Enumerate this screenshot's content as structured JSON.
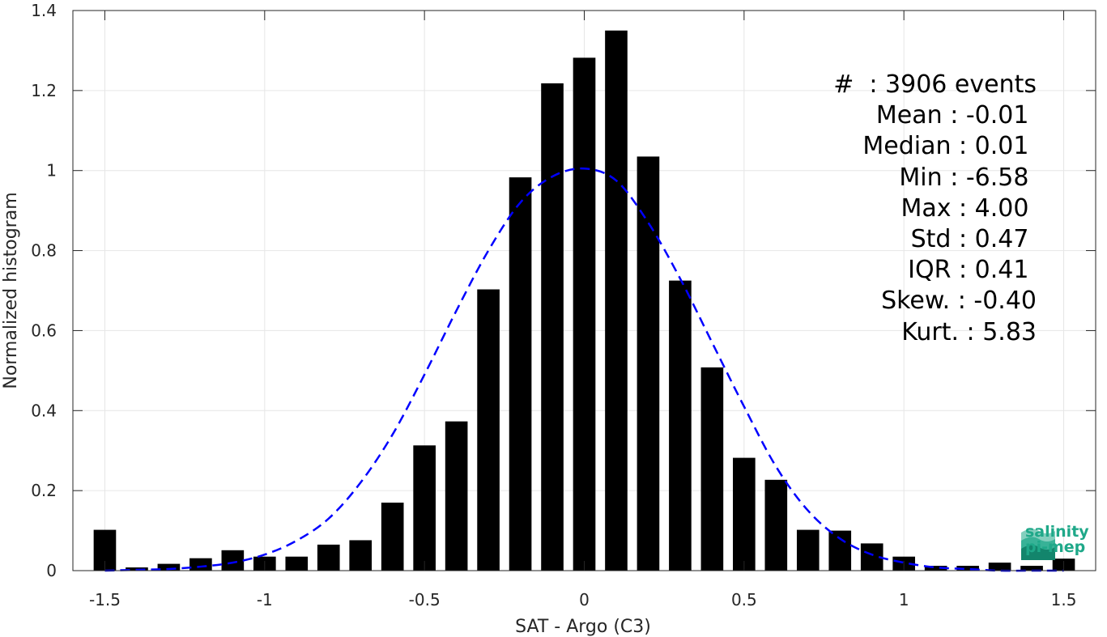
{
  "chart_data": {
    "type": "bar",
    "xlabel": "SAT - Argo (C3)",
    "ylabel": "Normalized histogram",
    "xlim": [
      -1.6,
      1.6
    ],
    "ylim": [
      0,
      1.4
    ],
    "xticks": [
      -1.5,
      -1,
      -0.5,
      0,
      0.5,
      1,
      1.5
    ],
    "xtick_labels": [
      "-1.5",
      "-1",
      "-0.5",
      "0",
      "0.5",
      "1",
      "1.5"
    ],
    "yticks": [
      0,
      0.2,
      0.4,
      0.6,
      0.8,
      1,
      1.2,
      1.4
    ],
    "ytick_labels": [
      "0",
      "0.2",
      "0.4",
      "0.6",
      "0.8",
      "1",
      "1.2",
      "1.4"
    ],
    "grid": true,
    "bar_color": "#000000",
    "fit_color": "#0000ff",
    "bin_width": 0.1,
    "x": [
      -1.5,
      -1.4,
      -1.3,
      -1.2,
      -1.1,
      -1.0,
      -0.9,
      -0.8,
      -0.7,
      -0.6,
      -0.5,
      -0.4,
      -0.3,
      -0.2,
      -0.1,
      0.0,
      0.1,
      0.2,
      0.3,
      0.4,
      0.5,
      0.6,
      0.7,
      0.8,
      0.9,
      1.0,
      1.1,
      1.2,
      1.3,
      1.4,
      1.5
    ],
    "values": [
      0.102,
      0.008,
      0.017,
      0.031,
      0.051,
      0.035,
      0.035,
      0.065,
      0.076,
      0.17,
      0.313,
      0.373,
      0.703,
      0.983,
      1.218,
      1.282,
      1.35,
      1.035,
      0.725,
      0.508,
      0.282,
      0.227,
      0.102,
      0.1,
      0.068,
      0.035,
      0.012,
      0.012,
      0.02,
      0.012,
      0.03
    ],
    "series": [
      {
        "name": "",
        "type": "line",
        "style": "dashed",
        "x": [
          -1.5,
          -1.4,
          -1.3,
          -1.2,
          -1.1,
          -1.0,
          -0.9,
          -0.8,
          -0.7,
          -0.6,
          -0.5,
          -0.4,
          -0.3,
          -0.2,
          -0.1,
          0.0,
          0.1,
          0.2,
          0.3,
          0.4,
          0.5,
          0.6,
          0.7,
          0.8,
          0.9,
          1.0,
          1.1,
          1.2,
          1.3,
          1.4,
          1.5
        ],
        "y": [
          0.0,
          0.002,
          0.004,
          0.01,
          0.02,
          0.04,
          0.075,
          0.13,
          0.22,
          0.34,
          0.49,
          0.65,
          0.8,
          0.92,
          0.985,
          1.005,
          0.975,
          0.87,
          0.73,
          0.57,
          0.41,
          0.26,
          0.15,
          0.08,
          0.04,
          0.02,
          0.008,
          0.004,
          0.0,
          0.0,
          0.0
        ]
      }
    ]
  },
  "stats": [
    "#  : 3906 events",
    "Mean : -0.01 ",
    "Median : 0.01 ",
    "Min : -6.58 ",
    "Max : 4.00 ",
    "Std : 0.47 ",
    "IQR : 0.41 ",
    "Skew. : -0.40",
    "Kurt. : 5.83"
  ],
  "logo": {
    "line1": "salinity",
    "line2": "pi-mep",
    "icon": "wave-logo-icon",
    "color": "#1fa889"
  }
}
